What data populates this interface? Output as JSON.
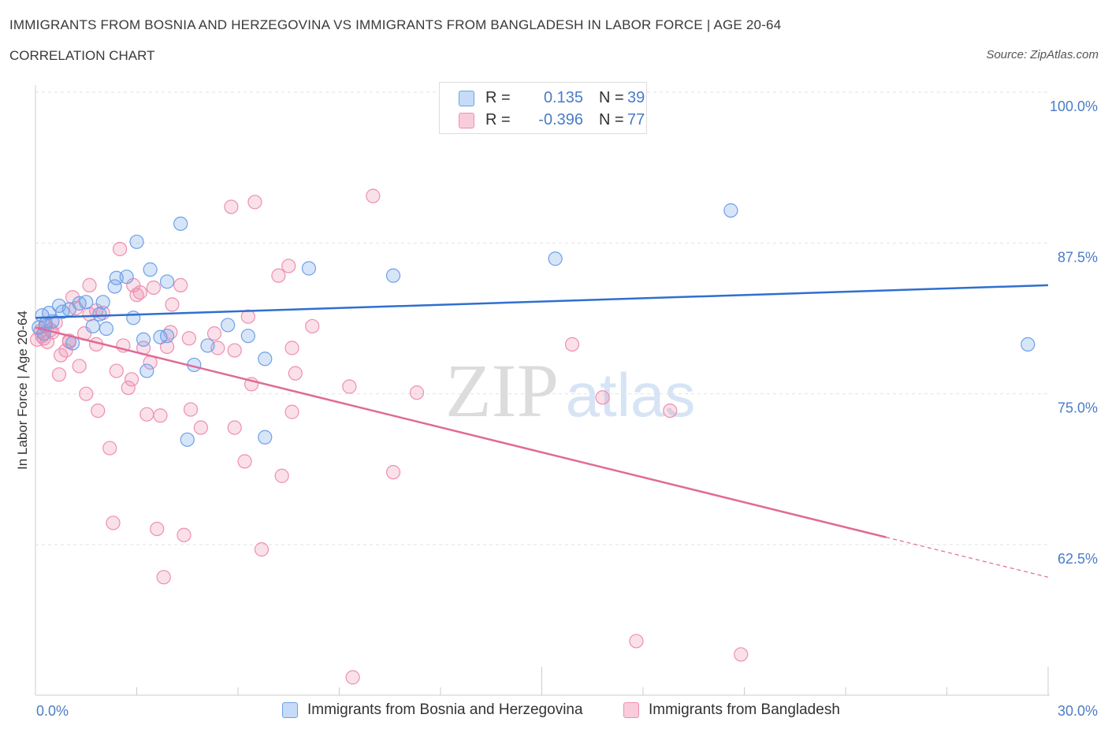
{
  "title": "IMMIGRANTS FROM BOSNIA AND HERZEGOVINA VS IMMIGRANTS FROM BANGLADESH IN LABOR FORCE | AGE 20-64",
  "subtitle": "CORRELATION CHART",
  "source": "Source: ZipAtlas.com",
  "watermark": {
    "zip": "ZIP",
    "atlas": "atlas"
  },
  "legend": {
    "rows": [
      {
        "r_label": "R =",
        "r_value": "0.135",
        "n_label": "N =",
        "n_value": "39",
        "color": "#6ea0e8"
      },
      {
        "r_label": "R =",
        "r_value": "-0.396",
        "n_label": "N =",
        "n_value": "77",
        "color": "#ee8fb0"
      }
    ]
  },
  "bottom_legend": [
    {
      "label": "Immigrants from Bosnia and Herzegovina"
    },
    {
      "label": "Immigrants from Bangladesh"
    }
  ],
  "chart_data": {
    "type": "scatter",
    "xlabel": "",
    "ylabel": "In Labor Force | Age 20-64",
    "xlim": [
      0,
      30
    ],
    "ylim": [
      50,
      100
    ],
    "x_tick_labels": [
      "0.0%",
      "30.0%"
    ],
    "y_ticks": [
      62.5,
      75.0,
      87.5,
      100.0
    ],
    "y_tick_labels": [
      "62.5%",
      "75.0%",
      "87.5%",
      "100.0%"
    ],
    "series": [
      {
        "name": "Immigrants from Bosnia and Herzegovina",
        "color": "#6ea0e8",
        "trend": {
          "x": [
            0,
            30
          ],
          "y": [
            81.3,
            84.0
          ],
          "dashed_from": null
        },
        "points": [
          [
            0.1,
            80.5
          ],
          [
            0.2,
            81.5
          ],
          [
            0.25,
            80.0
          ],
          [
            0.3,
            80.8
          ],
          [
            0.4,
            81.7
          ],
          [
            0.5,
            81.0
          ],
          [
            0.7,
            82.3
          ],
          [
            0.8,
            81.8
          ],
          [
            1.0,
            82.0
          ],
          [
            1.1,
            79.2
          ],
          [
            1.3,
            82.5
          ],
          [
            1.5,
            82.6
          ],
          [
            1.7,
            80.6
          ],
          [
            1.9,
            81.6
          ],
          [
            2.0,
            82.6
          ],
          [
            2.1,
            80.4
          ],
          [
            2.35,
            83.9
          ],
          [
            2.4,
            84.6
          ],
          [
            2.7,
            84.7
          ],
          [
            2.9,
            81.3
          ],
          [
            3.0,
            87.6
          ],
          [
            3.2,
            79.5
          ],
          [
            3.3,
            76.9
          ],
          [
            3.4,
            85.3
          ],
          [
            3.7,
            79.7
          ],
          [
            3.9,
            79.8
          ],
          [
            3.9,
            84.3
          ],
          [
            4.3,
            89.1
          ],
          [
            4.5,
            71.2
          ],
          [
            4.7,
            77.4
          ],
          [
            5.1,
            79.0
          ],
          [
            5.7,
            80.7
          ],
          [
            6.3,
            79.8
          ],
          [
            6.8,
            77.9
          ],
          [
            6.8,
            71.4
          ],
          [
            8.1,
            85.4
          ],
          [
            10.6,
            84.8
          ],
          [
            15.4,
            86.2
          ],
          [
            20.6,
            90.2
          ],
          [
            29.4,
            79.1
          ]
        ]
      },
      {
        "name": "Immigrants from Bangladesh",
        "color": "#ee8fb0",
        "trend": {
          "x": [
            0,
            30
          ],
          "y": [
            80.5,
            59.8
          ],
          "dashed_from": 25.2
        },
        "points": [
          [
            0.05,
            79.5
          ],
          [
            0.15,
            80.2
          ],
          [
            0.2,
            79.8
          ],
          [
            0.3,
            80.6
          ],
          [
            0.35,
            79.3
          ],
          [
            0.5,
            80.1
          ],
          [
            0.6,
            80.9
          ],
          [
            0.7,
            76.6
          ],
          [
            0.75,
            78.2
          ],
          [
            0.9,
            78.6
          ],
          [
            1.0,
            79.3
          ],
          [
            1.1,
            83.0
          ],
          [
            1.2,
            82.1
          ],
          [
            1.3,
            77.3
          ],
          [
            1.45,
            80.0
          ],
          [
            1.5,
            75.0
          ],
          [
            1.6,
            81.6
          ],
          [
            1.6,
            84.0
          ],
          [
            1.8,
            81.9
          ],
          [
            1.8,
            79.1
          ],
          [
            1.85,
            73.6
          ],
          [
            2.0,
            81.7
          ],
          [
            2.2,
            70.5
          ],
          [
            2.3,
            64.3
          ],
          [
            2.4,
            76.9
          ],
          [
            2.5,
            87.0
          ],
          [
            2.6,
            79.0
          ],
          [
            2.75,
            75.5
          ],
          [
            2.85,
            76.2
          ],
          [
            2.9,
            84.0
          ],
          [
            3.0,
            83.2
          ],
          [
            3.1,
            83.4
          ],
          [
            3.2,
            78.8
          ],
          [
            3.3,
            73.3
          ],
          [
            3.4,
            77.6
          ],
          [
            3.5,
            83.8
          ],
          [
            3.6,
            63.8
          ],
          [
            3.7,
            73.2
          ],
          [
            3.8,
            59.8
          ],
          [
            3.9,
            78.9
          ],
          [
            4.0,
            80.1
          ],
          [
            4.05,
            82.4
          ],
          [
            4.3,
            84.0
          ],
          [
            4.4,
            63.3
          ],
          [
            4.55,
            79.6
          ],
          [
            4.6,
            73.7
          ],
          [
            4.9,
            72.2
          ],
          [
            5.3,
            80.0
          ],
          [
            5.4,
            78.8
          ],
          [
            5.8,
            90.5
          ],
          [
            5.9,
            72.2
          ],
          [
            5.9,
            78.6
          ],
          [
            6.2,
            69.4
          ],
          [
            6.3,
            81.4
          ],
          [
            6.4,
            75.8
          ],
          [
            6.5,
            90.9
          ],
          [
            6.7,
            62.1
          ],
          [
            7.2,
            84.8
          ],
          [
            7.3,
            68.2
          ],
          [
            7.5,
            85.6
          ],
          [
            7.6,
            73.5
          ],
          [
            7.6,
            78.8
          ],
          [
            7.7,
            76.7
          ],
          [
            8.2,
            80.6
          ],
          [
            9.3,
            75.6
          ],
          [
            9.4,
            51.5
          ],
          [
            10.0,
            91.4
          ],
          [
            10.6,
            68.5
          ],
          [
            11.3,
            75.1
          ],
          [
            15.9,
            79.1
          ],
          [
            16.8,
            74.7
          ],
          [
            17.8,
            54.5
          ],
          [
            18.8,
            73.6
          ],
          [
            20.9,
            53.4
          ],
          [
            0.25,
            79.6
          ],
          [
            0.45,
            80.3
          ],
          [
            1.0,
            79.4
          ]
        ]
      }
    ]
  }
}
